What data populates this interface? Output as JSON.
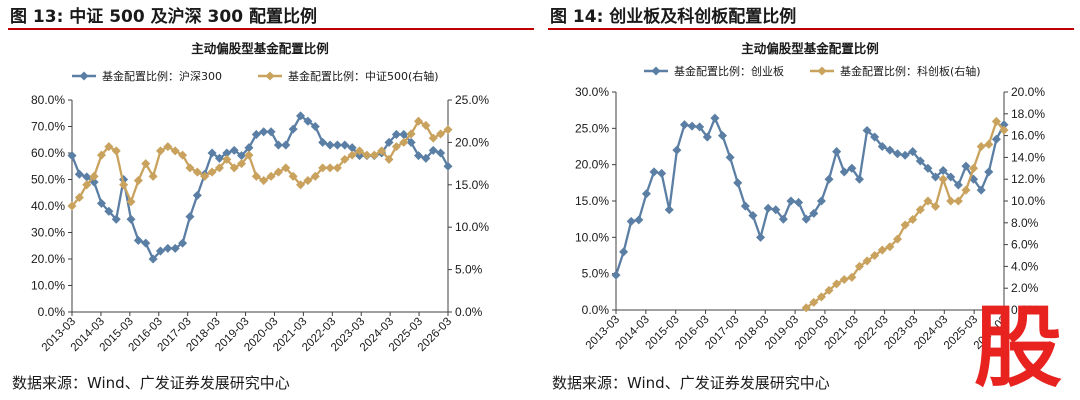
{
  "figures": [
    {
      "heading": "图 13:  中证 500 及沪深 300 配置比例",
      "source": "数据来源：Wind、广发证券发展研究中心"
    },
    {
      "heading": "图 14:  创业板及科创板配置比例",
      "source": "数据来源：Wind、广发证券发展研究中心"
    }
  ],
  "watermark_text": "股",
  "colors": {
    "blue": "#5b7fa4",
    "gold": "#c9a25e",
    "title_rule": "#c00000",
    "watermark": "#e8231f"
  },
  "chart_data": [
    {
      "type": "line",
      "title": "主动偏股型基金配置比例",
      "x_tick_labels": [
        "2013-03",
        "2014-03",
        "2015-03",
        "2016-03",
        "2017-03",
        "2018-03",
        "2019-03",
        "2020-03",
        "2021-03",
        "2022-03",
        "2023-03",
        "2024-03",
        "2025-03",
        "2026-03"
      ],
      "y_left": {
        "ticks": [
          "0.0%",
          "10.0%",
          "20.0%",
          "30.0%",
          "40.0%",
          "50.0%",
          "60.0%",
          "70.0%",
          "80.0%"
        ],
        "range": [
          0,
          80
        ]
      },
      "y_right": {
        "ticks": [
          "0.0%",
          "5.0%",
          "10.0%",
          "15.0%",
          "20.0%",
          "25.0%"
        ],
        "range": [
          0,
          25
        ]
      },
      "grid": false,
      "legend_placement": "top",
      "series": [
        {
          "name": "基金配置比例：沪深300",
          "axis": "left",
          "color": "#5b7fa4",
          "values": [
            59,
            52,
            51,
            49,
            41,
            38,
            35,
            50,
            35,
            27,
            26,
            20,
            23,
            24,
            24,
            26,
            36,
            44,
            52,
            60,
            58,
            60,
            61,
            59,
            62,
            67,
            68,
            68,
            63,
            63,
            69,
            74,
            72,
            70,
            64,
            63,
            63,
            63,
            62,
            59,
            59,
            59,
            60,
            64,
            67,
            67,
            64,
            59,
            58,
            61,
            60,
            55
          ]
        },
        {
          "name": "基金配置比例：中证500(右轴)",
          "axis": "right",
          "color": "#c9a25e",
          "values": [
            12.5,
            13.5,
            15.0,
            16.0,
            18.5,
            19.5,
            19.0,
            15.0,
            13.0,
            15.5,
            17.5,
            16.0,
            19.0,
            19.5,
            19.0,
            18.5,
            17.0,
            16.5,
            16.0,
            16.5,
            17.0,
            18.0,
            17.0,
            17.5,
            18.5,
            16.0,
            15.5,
            16.0,
            16.5,
            17.0,
            16.0,
            15.0,
            15.5,
            16.0,
            17.0,
            17.0,
            17.0,
            18.0,
            18.5,
            19.0,
            18.5,
            18.5,
            19.0,
            18.0,
            19.5,
            20.0,
            21.0,
            22.5,
            22.0,
            20.5,
            21.0,
            21.5
          ]
        }
      ]
    },
    {
      "type": "line",
      "title": "主动偏股型基金配置比例",
      "x_tick_labels": [
        "2013-03",
        "2014-03",
        "2015-03",
        "2016-03",
        "2017-03",
        "2018-03",
        "2019-03",
        "2020-03",
        "2021-03",
        "2022-03",
        "2023-03",
        "2024-03",
        "2025-03",
        "2026-03"
      ],
      "y_left": {
        "ticks": [
          "0.0%",
          "5.0%",
          "10.0%",
          "15.0%",
          "20.0%",
          "25.0%",
          "30.0%"
        ],
        "range": [
          0,
          30
        ]
      },
      "y_right": {
        "ticks": [
          "0.0%",
          "2.0%",
          "4.0%",
          "6.0%",
          "8.0%",
          "10.0%",
          "12.0%",
          "14.0%",
          "16.0%",
          "18.0%",
          "20.0%"
        ],
        "range": [
          0,
          20
        ]
      },
      "grid": false,
      "legend_placement": "top",
      "series": [
        {
          "name": "基金配置比例：创业板",
          "axis": "left",
          "color": "#5b7fa4",
          "values": [
            4.8,
            8.0,
            12.2,
            12.4,
            16.0,
            19.0,
            18.8,
            13.8,
            22.0,
            25.5,
            25.3,
            25.2,
            23.8,
            26.4,
            24.0,
            21.0,
            17.5,
            14.3,
            13.0,
            10.0,
            14.0,
            13.8,
            12.5,
            15.0,
            14.8,
            12.5,
            13.3,
            15.0,
            18.0,
            21.8,
            19.0,
            19.5,
            18.0,
            24.7,
            23.8,
            22.5,
            22.0,
            21.5,
            21.3,
            21.8,
            20.5,
            19.5,
            18.3,
            19.2,
            18.3,
            17.2,
            19.8,
            18.0,
            16.5,
            19.0,
            23.5,
            25.5
          ]
        },
        {
          "name": "基金配置比例：科创板(右轴)",
          "axis": "right",
          "color": "#c9a25e",
          "values": [
            null,
            null,
            null,
            null,
            null,
            null,
            null,
            null,
            null,
            null,
            null,
            null,
            null,
            null,
            null,
            null,
            null,
            null,
            null,
            null,
            null,
            null,
            null,
            null,
            null,
            0.2,
            0.7,
            1.2,
            1.8,
            2.4,
            2.8,
            3.0,
            4.0,
            4.5,
            5.0,
            5.5,
            5.8,
            6.5,
            7.8,
            8.3,
            9.2,
            10.0,
            9.5,
            12.0,
            10.0,
            10.0,
            11.0,
            13.0,
            15.0,
            15.2,
            17.3,
            16.5
          ]
        }
      ]
    }
  ]
}
